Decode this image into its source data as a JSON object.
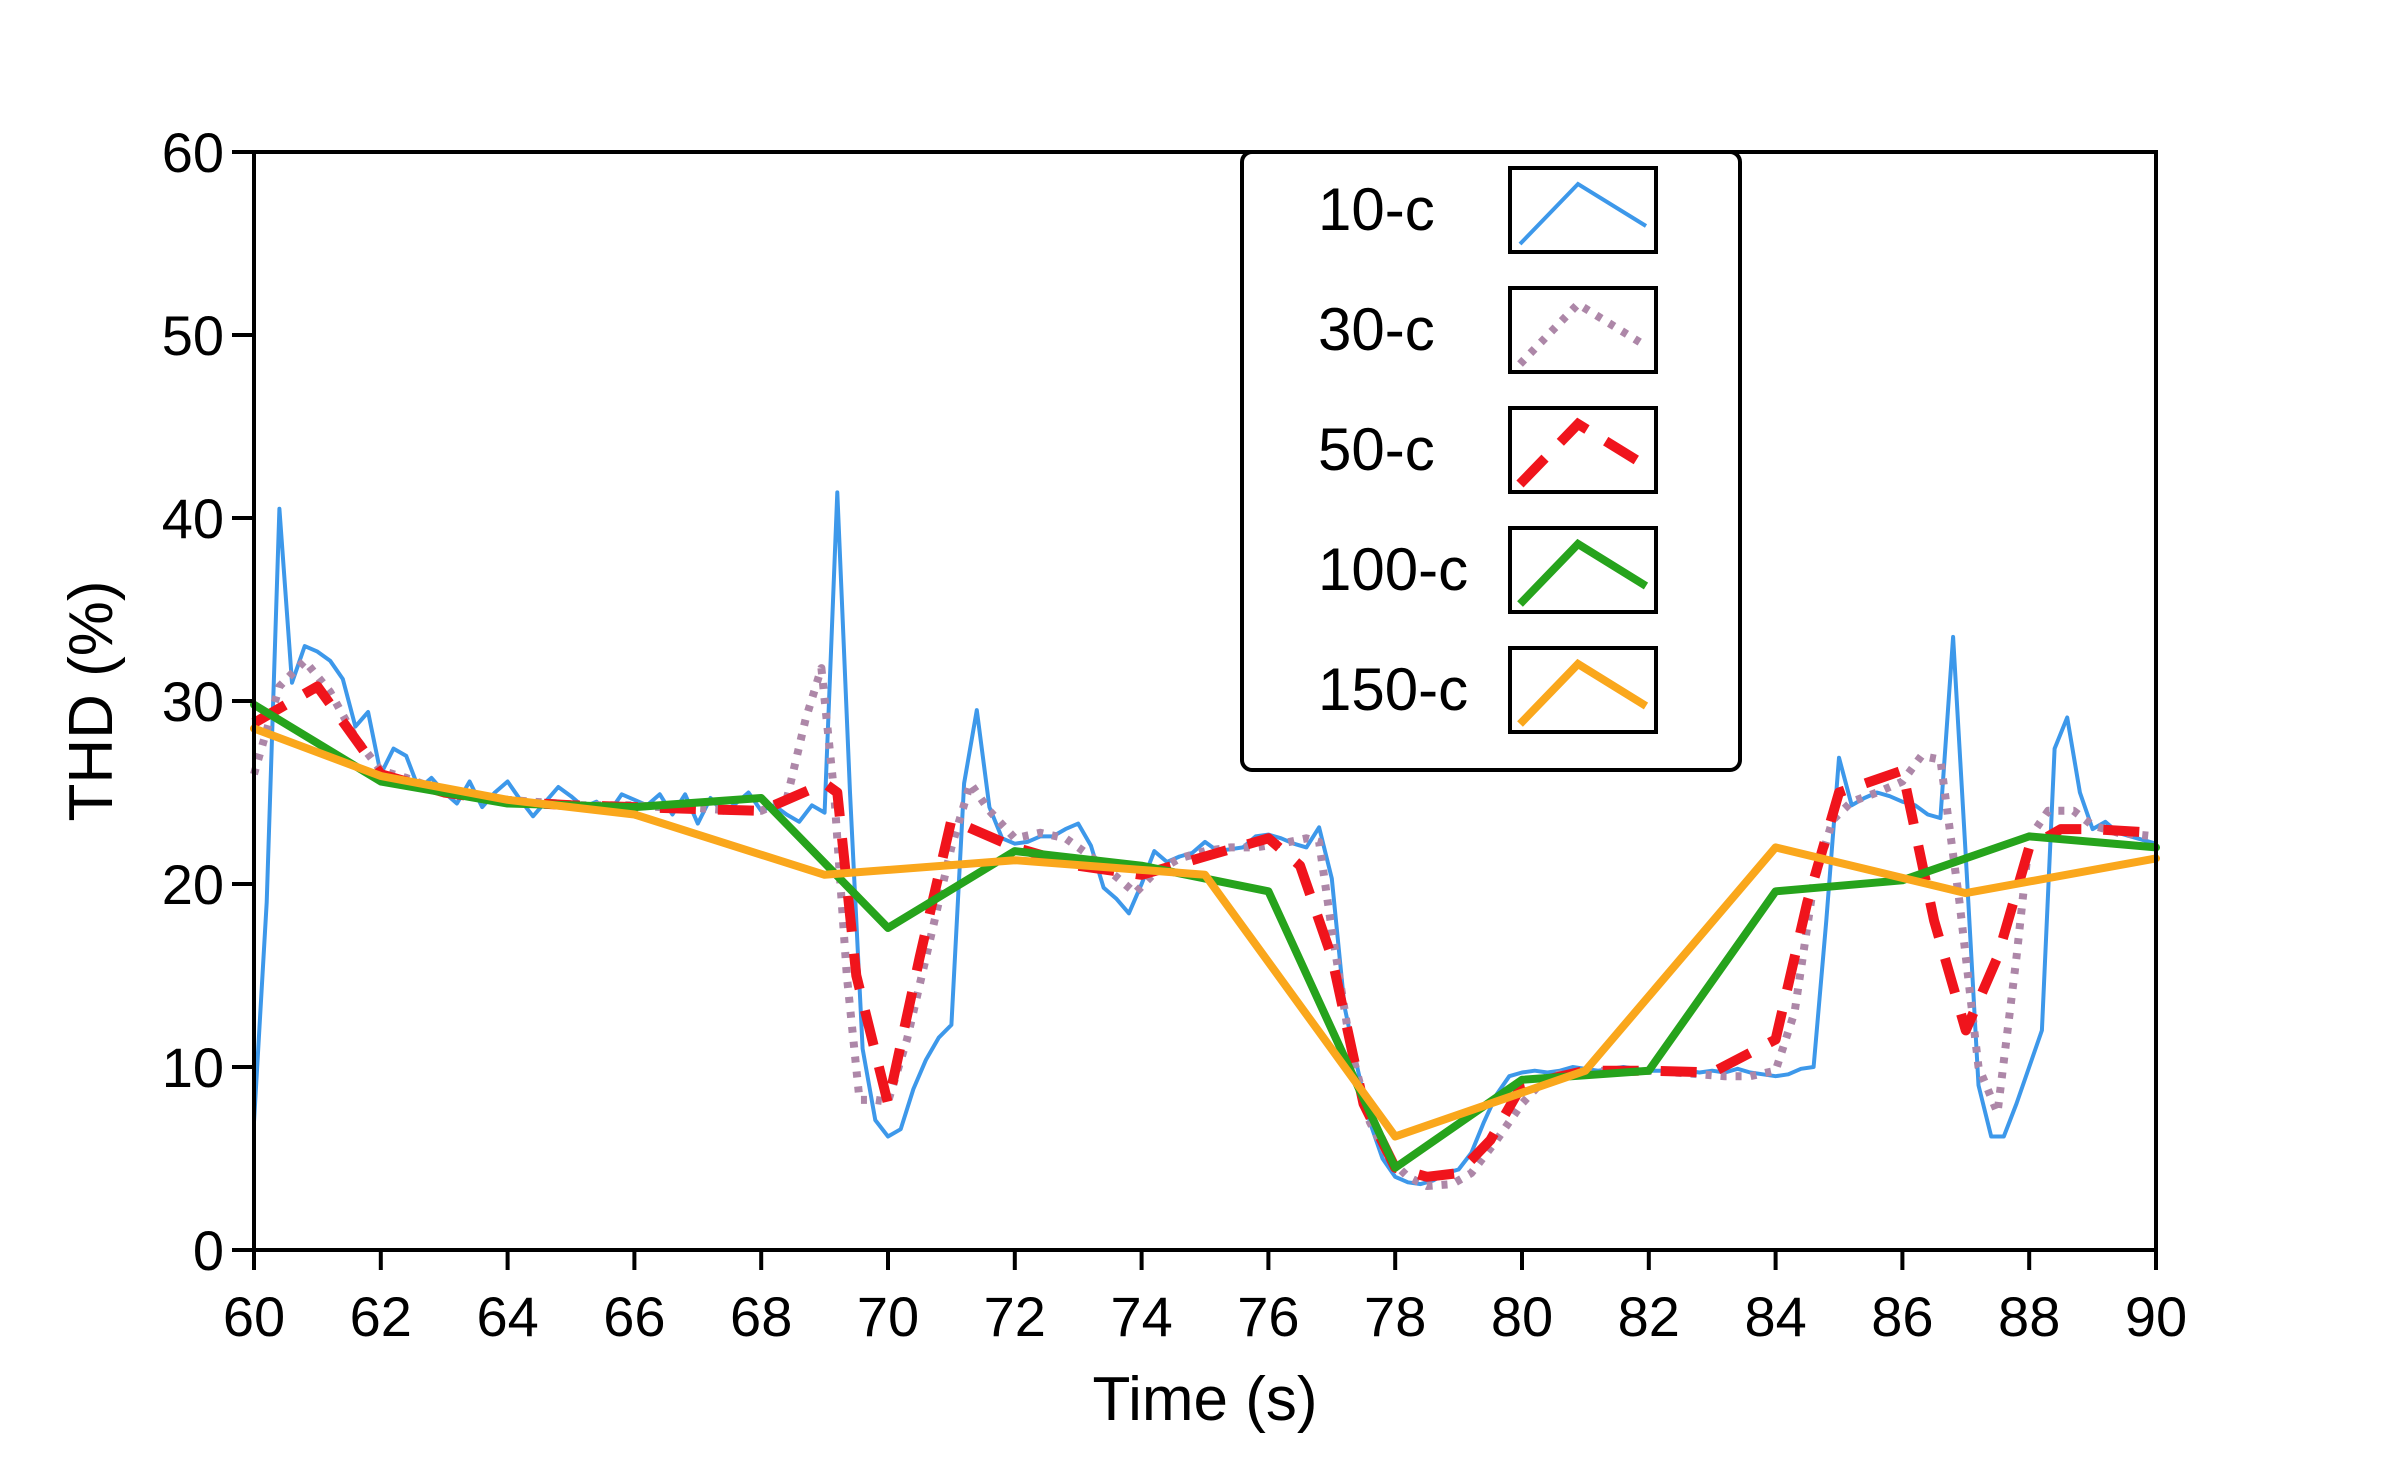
{
  "chart_data": {
    "type": "line",
    "title": "",
    "xlabel": "Time (s)",
    "ylabel": "THD (%)",
    "xlim": [
      60,
      90
    ],
    "ylim": [
      0,
      60
    ],
    "xticks": [
      60,
      62,
      64,
      66,
      68,
      70,
      72,
      74,
      76,
      78,
      80,
      82,
      84,
      86,
      88,
      90
    ],
    "yticks": [
      0,
      10,
      20,
      30,
      40,
      50,
      60
    ],
    "grid": false,
    "legend_position": "top-right",
    "series": [
      {
        "name": "10-c",
        "color": "#3d98ea",
        "dash": "solid",
        "points": [
          [
            60.0,
            7.0
          ],
          [
            60.2,
            19.0
          ],
          [
            60.4,
            40.5
          ],
          [
            60.6,
            31.0
          ],
          [
            60.8,
            33.0
          ],
          [
            61.0,
            32.7
          ],
          [
            61.2,
            32.2
          ],
          [
            61.4,
            31.2
          ],
          [
            61.6,
            28.6
          ],
          [
            61.8,
            29.4
          ],
          [
            62.0,
            26.0
          ],
          [
            62.2,
            27.4
          ],
          [
            62.4,
            27.0
          ],
          [
            62.6,
            25.2
          ],
          [
            62.8,
            25.8
          ],
          [
            63.0,
            25.0
          ],
          [
            63.2,
            24.4
          ],
          [
            63.4,
            25.6
          ],
          [
            63.6,
            24.2
          ],
          [
            63.8,
            25.0
          ],
          [
            64.0,
            25.6
          ],
          [
            64.2,
            24.6
          ],
          [
            64.4,
            23.7
          ],
          [
            64.6,
            24.5
          ],
          [
            64.8,
            25.3
          ],
          [
            65.0,
            24.8
          ],
          [
            65.2,
            24.2
          ],
          [
            65.4,
            24.5
          ],
          [
            65.6,
            23.9
          ],
          [
            65.8,
            24.9
          ],
          [
            66.0,
            24.6
          ],
          [
            66.2,
            24.3
          ],
          [
            66.4,
            24.9
          ],
          [
            66.6,
            23.8
          ],
          [
            66.8,
            24.9
          ],
          [
            67.0,
            23.3
          ],
          [
            67.2,
            24.7
          ],
          [
            67.4,
            23.9
          ],
          [
            67.6,
            24.4
          ],
          [
            67.8,
            25.0
          ],
          [
            68.0,
            24.0
          ],
          [
            68.2,
            24.3
          ],
          [
            68.4,
            23.8
          ],
          [
            68.6,
            23.4
          ],
          [
            68.8,
            24.3
          ],
          [
            69.0,
            23.9
          ],
          [
            69.2,
            41.4
          ],
          [
            69.4,
            25.0
          ],
          [
            69.6,
            11.0
          ],
          [
            69.8,
            7.1
          ],
          [
            70.0,
            6.2
          ],
          [
            70.2,
            6.6
          ],
          [
            70.4,
            8.8
          ],
          [
            70.6,
            10.4
          ],
          [
            70.8,
            11.6
          ],
          [
            71.0,
            12.3
          ],
          [
            71.2,
            25.5
          ],
          [
            71.4,
            29.5
          ],
          [
            71.6,
            24.2
          ],
          [
            71.8,
            22.5
          ],
          [
            72.0,
            22.2
          ],
          [
            72.2,
            22.3
          ],
          [
            72.4,
            22.6
          ],
          [
            72.6,
            22.6
          ],
          [
            72.8,
            23.0
          ],
          [
            73.0,
            23.3
          ],
          [
            73.2,
            22.1
          ],
          [
            73.4,
            19.8
          ],
          [
            73.6,
            19.2
          ],
          [
            73.8,
            18.4
          ],
          [
            74.0,
            20.0
          ],
          [
            74.2,
            21.8
          ],
          [
            74.4,
            21.2
          ],
          [
            74.6,
            21.5
          ],
          [
            74.8,
            21.7
          ],
          [
            75.0,
            22.3
          ],
          [
            75.2,
            21.8
          ],
          [
            75.4,
            21.9
          ],
          [
            75.6,
            22.0
          ],
          [
            75.8,
            22.6
          ],
          [
            76.0,
            22.7
          ],
          [
            76.2,
            22.5
          ],
          [
            76.4,
            22.2
          ],
          [
            76.6,
            22.0
          ],
          [
            76.8,
            23.1
          ],
          [
            77.0,
            20.3
          ],
          [
            77.2,
            13.3
          ],
          [
            77.4,
            10.0
          ],
          [
            77.6,
            7.0
          ],
          [
            77.8,
            5.0
          ],
          [
            78.0,
            4.0
          ],
          [
            78.2,
            3.7
          ],
          [
            78.4,
            3.6
          ],
          [
            78.6,
            3.8
          ],
          [
            78.8,
            4.2
          ],
          [
            79.0,
            4.4
          ],
          [
            79.2,
            5.3
          ],
          [
            79.4,
            7.0
          ],
          [
            79.6,
            8.5
          ],
          [
            79.8,
            9.5
          ],
          [
            80.0,
            9.7
          ],
          [
            80.2,
            9.8
          ],
          [
            80.4,
            9.7
          ],
          [
            80.6,
            9.8
          ],
          [
            80.8,
            10.0
          ],
          [
            81.0,
            9.9
          ],
          [
            81.2,
            9.8
          ],
          [
            81.4,
            9.9
          ],
          [
            81.6,
            10.0
          ],
          [
            81.8,
            9.9
          ],
          [
            82.0,
            9.8
          ],
          [
            82.2,
            9.8
          ],
          [
            82.4,
            9.9
          ],
          [
            82.6,
            9.8
          ],
          [
            82.8,
            9.7
          ],
          [
            83.0,
            9.8
          ],
          [
            83.2,
            9.7
          ],
          [
            83.4,
            9.9
          ],
          [
            83.6,
            9.7
          ],
          [
            83.8,
            9.6
          ],
          [
            84.0,
            9.5
          ],
          [
            84.2,
            9.6
          ],
          [
            84.4,
            9.9
          ],
          [
            84.6,
            10.0
          ],
          [
            84.8,
            18.0
          ],
          [
            85.0,
            26.9
          ],
          [
            85.2,
            24.3
          ],
          [
            85.4,
            24.7
          ],
          [
            85.6,
            25.0
          ],
          [
            85.8,
            24.8
          ],
          [
            86.0,
            24.5
          ],
          [
            86.2,
            24.3
          ],
          [
            86.4,
            23.8
          ],
          [
            86.6,
            23.6
          ],
          [
            86.8,
            33.5
          ],
          [
            87.0,
            21.5
          ],
          [
            87.2,
            9.0
          ],
          [
            87.4,
            6.2
          ],
          [
            87.6,
            6.2
          ],
          [
            87.8,
            8.0
          ],
          [
            88.0,
            10.0
          ],
          [
            88.2,
            12.0
          ],
          [
            88.4,
            27.4
          ],
          [
            88.6,
            29.1
          ],
          [
            88.8,
            25.0
          ],
          [
            89.0,
            23.0
          ],
          [
            89.2,
            23.4
          ],
          [
            89.4,
            22.8
          ],
          [
            89.6,
            22.6
          ],
          [
            89.8,
            22.4
          ],
          [
            90.0,
            22.2
          ]
        ]
      },
      {
        "name": "30-c",
        "color": "#ad87a8",
        "dash": "dot",
        "points": [
          [
            60.0,
            26.0
          ],
          [
            60.4,
            30.8
          ],
          [
            60.8,
            32.2
          ],
          [
            61.2,
            30.5
          ],
          [
            61.6,
            28.0
          ],
          [
            62.0,
            26.2
          ],
          [
            62.4,
            25.8
          ],
          [
            62.8,
            25.3
          ],
          [
            63.2,
            25.0
          ],
          [
            63.6,
            24.8
          ],
          [
            64.0,
            24.6
          ],
          [
            64.4,
            24.5
          ],
          [
            64.8,
            24.4
          ],
          [
            65.2,
            24.3
          ],
          [
            65.6,
            24.3
          ],
          [
            66.0,
            24.3
          ],
          [
            66.4,
            24.2
          ],
          [
            66.8,
            24.2
          ],
          [
            67.2,
            24.1
          ],
          [
            67.6,
            24.0
          ],
          [
            68.0,
            24.0
          ],
          [
            68.4,
            24.6
          ],
          [
            68.7,
            29.0
          ],
          [
            68.95,
            31.8
          ],
          [
            69.15,
            25.0
          ],
          [
            69.35,
            15.0
          ],
          [
            69.55,
            8.2
          ],
          [
            69.8,
            8.2
          ],
          [
            70.0,
            8.1
          ],
          [
            70.3,
            11.5
          ],
          [
            70.7,
            17.5
          ],
          [
            71.0,
            22.0
          ],
          [
            71.3,
            25.5
          ],
          [
            71.6,
            24.0
          ],
          [
            72.0,
            22.5
          ],
          [
            72.4,
            22.8
          ],
          [
            72.8,
            22.5
          ],
          [
            73.2,
            21.5
          ],
          [
            73.6,
            20.4
          ],
          [
            73.9,
            19.5
          ],
          [
            74.2,
            20.6
          ],
          [
            74.6,
            21.4
          ],
          [
            75.0,
            21.8
          ],
          [
            75.4,
            22.0
          ],
          [
            75.8,
            22.0
          ],
          [
            76.2,
            22.2
          ],
          [
            76.6,
            22.5
          ],
          [
            76.8,
            22.3
          ],
          [
            77.0,
            17.5
          ],
          [
            77.3,
            11.0
          ],
          [
            77.6,
            7.0
          ],
          [
            77.9,
            5.0
          ],
          [
            78.2,
            4.0
          ],
          [
            78.5,
            3.5
          ],
          [
            78.9,
            3.6
          ],
          [
            79.2,
            4.2
          ],
          [
            79.6,
            6.0
          ],
          [
            80.0,
            8.0
          ],
          [
            80.4,
            9.5
          ],
          [
            80.8,
            9.7
          ],
          [
            81.2,
            9.8
          ],
          [
            81.6,
            9.7
          ],
          [
            82.0,
            9.8
          ],
          [
            82.4,
            9.7
          ],
          [
            82.8,
            9.6
          ],
          [
            83.2,
            9.5
          ],
          [
            83.6,
            9.5
          ],
          [
            84.0,
            9.8
          ],
          [
            84.3,
            13.0
          ],
          [
            84.6,
            20.0
          ],
          [
            84.9,
            23.5
          ],
          [
            85.2,
            24.5
          ],
          [
            85.6,
            25.0
          ],
          [
            86.0,
            25.6
          ],
          [
            86.3,
            27.0
          ],
          [
            86.6,
            26.8
          ],
          [
            86.9,
            19.0
          ],
          [
            87.2,
            10.0
          ],
          [
            87.5,
            7.5
          ],
          [
            87.8,
            16.0
          ],
          [
            88.0,
            22.5
          ],
          [
            88.3,
            24.0
          ],
          [
            88.7,
            24.0
          ],
          [
            89.0,
            23.2
          ],
          [
            89.4,
            22.8
          ],
          [
            90.0,
            22.6
          ]
        ]
      },
      {
        "name": "50-c",
        "color": "#f0141c",
        "dash": "dash",
        "points": [
          [
            60.0,
            28.8
          ],
          [
            61.0,
            30.8
          ],
          [
            62.0,
            26.0
          ],
          [
            63.0,
            25.0
          ],
          [
            64.0,
            24.5
          ],
          [
            65.0,
            24.3
          ],
          [
            66.0,
            24.2
          ],
          [
            67.0,
            24.1
          ],
          [
            68.0,
            24.0
          ],
          [
            69.0,
            25.5
          ],
          [
            69.2,
            25.0
          ],
          [
            69.5,
            15.0
          ],
          [
            70.0,
            8.0
          ],
          [
            70.5,
            16.0
          ],
          [
            71.0,
            23.5
          ],
          [
            72.0,
            22.0
          ],
          [
            73.0,
            21.0
          ],
          [
            74.0,
            20.5
          ],
          [
            74.5,
            21.0
          ],
          [
            75.0,
            21.5
          ],
          [
            76.0,
            22.5
          ],
          [
            76.5,
            21.0
          ],
          [
            77.0,
            16.0
          ],
          [
            77.5,
            8.0
          ],
          [
            78.0,
            4.5
          ],
          [
            78.5,
            4.0
          ],
          [
            79.0,
            4.2
          ],
          [
            79.5,
            6.0
          ],
          [
            80.0,
            9.0
          ],
          [
            81.0,
            9.8
          ],
          [
            82.0,
            9.8
          ],
          [
            83.0,
            9.7
          ],
          [
            84.0,
            11.5
          ],
          [
            84.5,
            19.0
          ],
          [
            85.0,
            25.0
          ],
          [
            86.0,
            26.2
          ],
          [
            86.5,
            18.0
          ],
          [
            87.0,
            12.0
          ],
          [
            87.5,
            16.0
          ],
          [
            88.0,
            22.0
          ],
          [
            88.5,
            23.0
          ],
          [
            89.0,
            23.0
          ],
          [
            90.0,
            22.8
          ]
        ]
      },
      {
        "name": "100-c",
        "color": "#26a31c",
        "dash": "solid",
        "points": [
          [
            60.0,
            29.8
          ],
          [
            62.0,
            25.6
          ],
          [
            64.0,
            24.4
          ],
          [
            66.0,
            24.2
          ],
          [
            68.0,
            24.7
          ],
          [
            70.0,
            17.6
          ],
          [
            72.0,
            21.8
          ],
          [
            74.0,
            21.0
          ],
          [
            76.0,
            19.6
          ],
          [
            78.0,
            4.5
          ],
          [
            80.0,
            9.3
          ],
          [
            82.0,
            9.8
          ],
          [
            84.0,
            19.6
          ],
          [
            86.0,
            20.2
          ],
          [
            88.0,
            22.6
          ],
          [
            90.0,
            22.0
          ]
        ]
      },
      {
        "name": "150-c",
        "color": "#faa71c",
        "dash": "solid",
        "points": [
          [
            60.0,
            28.5
          ],
          [
            62.0,
            25.9
          ],
          [
            64.0,
            24.6
          ],
          [
            66.0,
            23.8
          ],
          [
            69.0,
            20.5
          ],
          [
            72.0,
            21.3
          ],
          [
            75.0,
            20.5
          ],
          [
            78.0,
            6.2
          ],
          [
            81.0,
            9.8
          ],
          [
            84.0,
            22.0
          ],
          [
            87.0,
            19.5
          ],
          [
            90.0,
            21.4
          ]
        ]
      }
    ]
  }
}
